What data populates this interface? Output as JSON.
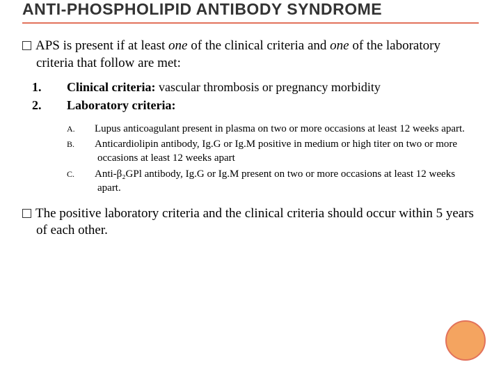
{
  "title": "ANTI-PHOSPHOLIPID ANTIBODY SYNDROME",
  "colors": {
    "accent": "#e2725b",
    "circle_fill": "#f4a460",
    "circle_border": "#e2725b",
    "text": "#000000",
    "title_color": "#333333",
    "background": "#ffffff"
  },
  "typography": {
    "title_font": "Arial",
    "title_size_pt": 23,
    "body_font": "Georgia",
    "body_size_pt": 19,
    "numbered_size_pt": 18,
    "alpha_size_pt": 15
  },
  "para1_pre": "APS is present if at least ",
  "para1_one1": "one",
  "para1_mid": " of the clinical criteria and ",
  "para1_one2": "one",
  "para1_post": " of the laboratory criteria that follow are met:",
  "numbered": [
    {
      "num": "1.",
      "label": "Clinical criteria:",
      "rest": " vascular thrombosis or pregnancy morbidity"
    },
    {
      "num": "2.",
      "label": "Laboratory criteria:",
      "rest": ""
    }
  ],
  "alpha": [
    {
      "letter": "A.",
      "text": "Lupus anticoagulant present in plasma on two or more occasions at least 12 weeks apart."
    },
    {
      "letter": "B.",
      "text": "Anticardiolipin antibody, Ig.G or Ig.M positive in medium or high titer on two or more occasions at least 12 weeks apart"
    },
    {
      "letter": "C.",
      "text": "Anti-β₂GPl antibody, Ig.G or Ig.M present on two or more occasions at least 12 weeks apart."
    }
  ],
  "para2": "The positive laboratory criteria and the clinical criteria should occur within 5 years of each other."
}
